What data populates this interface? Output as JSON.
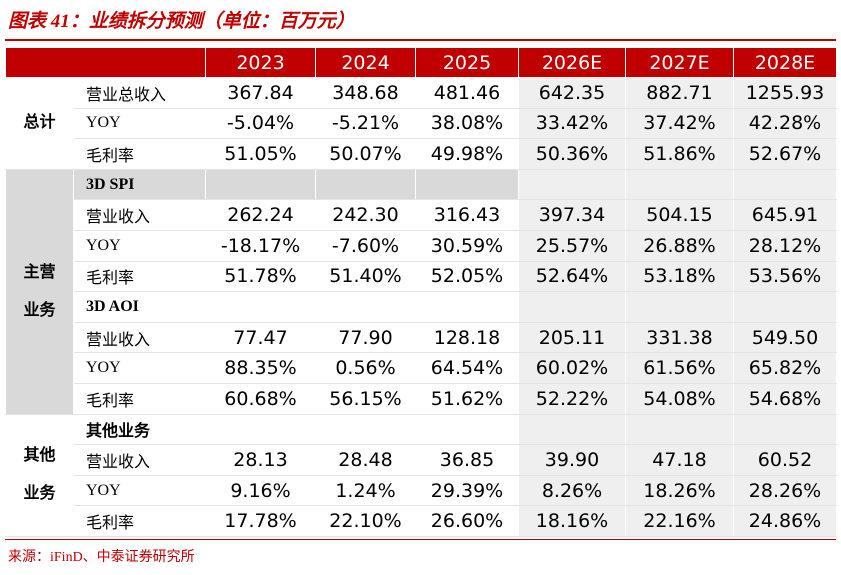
{
  "header": {
    "title": "图表 41：业绩拆分预测（单位：百万元）"
  },
  "table": {
    "columns": [
      "2023",
      "2024",
      "2025",
      "2026E",
      "2027E",
      "2028E"
    ],
    "sections": [
      {
        "label": [
          "总计"
        ],
        "rows": [
          {
            "label": "营业总收入",
            "values": [
              "367.84",
              "348.68",
              "481.46",
              "642.35",
              "882.71",
              "1255.93"
            ]
          },
          {
            "label": "YOY",
            "values": [
              "-5.04%",
              "-5.21%",
              "38.08%",
              "33.42%",
              "37.42%",
              "42.28%"
            ]
          },
          {
            "label": "毛利率",
            "values": [
              "51.05%",
              "50.07%",
              "49.98%",
              "50.36%",
              "51.86%",
              "52.67%"
            ]
          }
        ]
      },
      {
        "label": [
          "主营",
          "业务"
        ],
        "rows": [
          {
            "group": "3D SPI"
          },
          {
            "label": "营业收入",
            "values": [
              "262.24",
              "242.30",
              "316.43",
              "397.34",
              "504.15",
              "645.91"
            ]
          },
          {
            "label": "YOY",
            "values": [
              "-18.17%",
              "-7.60%",
              "30.59%",
              "25.57%",
              "26.88%",
              "28.12%"
            ]
          },
          {
            "label": "毛利率",
            "values": [
              "51.78%",
              "51.40%",
              "52.05%",
              "52.64%",
              "53.18%",
              "53.56%"
            ]
          },
          {
            "group": "3D AOI"
          },
          {
            "label": "营业收入",
            "values": [
              "77.47",
              "77.90",
              "128.18",
              "205.11",
              "331.38",
              "549.50"
            ]
          },
          {
            "label": "YOY",
            "values": [
              "88.35%",
              "0.56%",
              "64.54%",
              "60.02%",
              "61.56%",
              "65.82%"
            ]
          },
          {
            "label": "毛利率",
            "values": [
              "60.68%",
              "56.15%",
              "51.62%",
              "52.22%",
              "54.08%",
              "54.68%"
            ]
          }
        ]
      },
      {
        "label": [
          "其他",
          "业务"
        ],
        "rows": [
          {
            "group": "其他业务"
          },
          {
            "label": "营业收入",
            "values": [
              "28.13",
              "28.48",
              "36.85",
              "39.90",
              "47.18",
              "60.52"
            ]
          },
          {
            "label": "YOY",
            "values": [
              "9.16%",
              "1.24%",
              "29.39%",
              "8.26%",
              "18.26%",
              "28.26%"
            ]
          },
          {
            "label": "毛利率",
            "values": [
              "17.78%",
              "22.10%",
              "26.60%",
              "18.16%",
              "22.16%",
              "24.86%"
            ]
          }
        ]
      }
    ]
  },
  "footer": {
    "source": "来源：iFinD、中泰证券研究所"
  }
}
